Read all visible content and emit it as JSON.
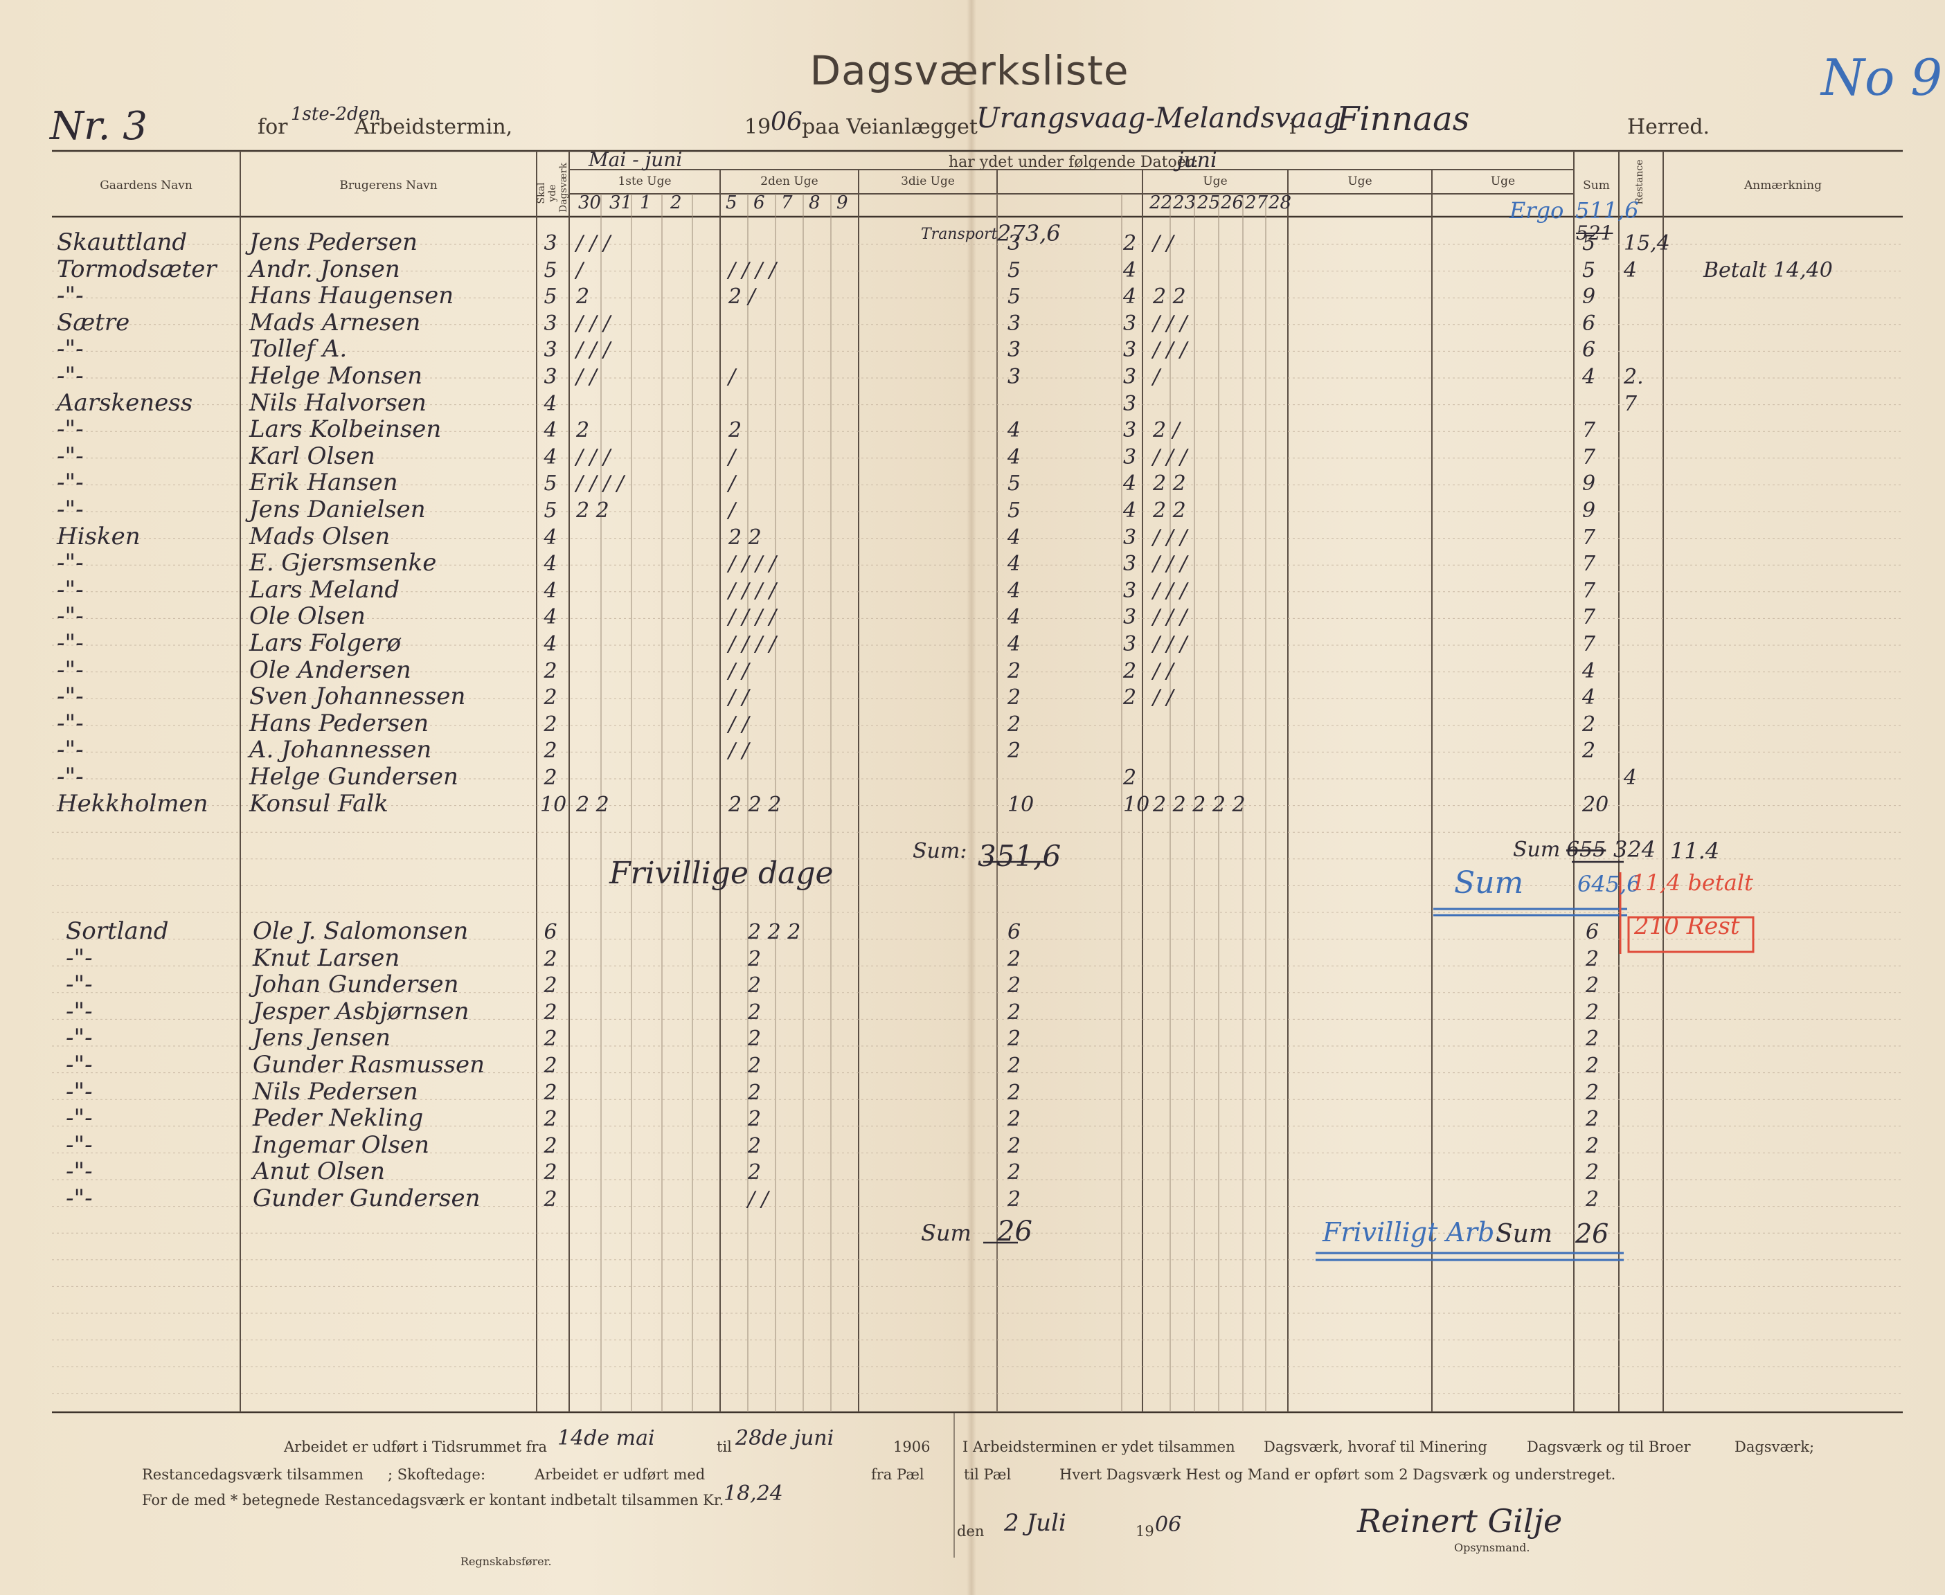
{
  "header": {
    "title": "Dagsværksliste",
    "list_no": "Nr. 3",
    "stamp_no": "No 9",
    "for_label": "for",
    "termin_hand": "1ste-2den",
    "arbeidstermin_label": "Arbeidstermin,",
    "year_prefix": "19",
    "year_hand": "06",
    "paa_label": "paa Veianlægget",
    "veianlaeg_hand": "Urangsvaag-Melandsvaag",
    "i_label": "i",
    "herred_hand": "Finnaas",
    "herred_label": "Herred."
  },
  "columns": {
    "gaard": "Gaardens Navn",
    "bruger": "Brugerens Navn",
    "skal": "Skal yde Dagsværk",
    "har_ydet": "har ydet under følgende Datoer:",
    "har_ydet_hand": "juni",
    "mai_juni_hand": "Mai - juni",
    "week1": "1ste Uge",
    "week2": "2den Uge",
    "week3": "3die Uge",
    "week4": "Uge",
    "week5": "Uge",
    "week6": "Uge",
    "sum": "Sum",
    "restance": "Restance",
    "anm": "Anmærkning",
    "dates_w1": [
      "30",
      "31",
      "1",
      "2"
    ],
    "dates_w2": [
      "5",
      "6",
      "7",
      "8",
      "9"
    ],
    "dates_w4": [
      "22",
      "23",
      "25",
      "26",
      "27",
      "28"
    ]
  },
  "rows": [
    {
      "gaard": "Skauttland",
      "bruger": "Jens Pedersen",
      "skal": "3",
      "w1": "/ / /",
      "w3a": "3",
      "w4a": "2",
      "w4": "/ /",
      "sum": "5",
      "rest": "15,4",
      "anm": ""
    },
    {
      "gaard": "Tormodsæter",
      "bruger": "Andr. Jonsen",
      "skal": "5",
      "w1": "/",
      "w2": "/ / / /",
      "w3a": "5",
      "w4a": "4",
      "w4": "",
      "sum": "5",
      "rest": "4",
      "anm": "Betalt 14,40"
    },
    {
      "gaard": "-\"-",
      "bruger": "Hans Haugensen",
      "skal": "5",
      "w1": "2",
      "w2": "2 /",
      "w3a": "5",
      "w4a": "4",
      "w4": "2 2",
      "sum": "9",
      "rest": "",
      "anm": ""
    },
    {
      "gaard": "Sætre",
      "bruger": "Mads Arnesen",
      "skal": "3",
      "w1": "/ / /",
      "w3a": "3",
      "w4a": "3",
      "w4": "/ / /",
      "sum": "6",
      "rest": "",
      "anm": ""
    },
    {
      "gaard": "-\"-",
      "bruger": "Tollef A.",
      "skal": "3",
      "w1": "/ / /",
      "w3a": "3",
      "w4a": "3",
      "w4": "/ / /",
      "sum": "6",
      "rest": "",
      "anm": ""
    },
    {
      "gaard": "-\"-",
      "bruger": "Helge Monsen",
      "skal": "3",
      "w1": "/ /",
      "w2": "/",
      "w3a": "3",
      "w4a": "3",
      "w4": "/",
      "sum": "4",
      "rest": "2.",
      "anm": ""
    },
    {
      "gaard": "Aarskeness",
      "bruger": "Nils Halvorsen",
      "skal": "4",
      "w1": "",
      "w3a": "",
      "w4a": "3",
      "w4": "",
      "sum": "",
      "rest": "7",
      "anm": ""
    },
    {
      "gaard": "-\"-",
      "bruger": "Lars Kolbeinsen",
      "skal": "4",
      "w1": "2",
      "w2": "2",
      "w3a": "4",
      "w4a": "3",
      "w4": "2 /",
      "sum": "7",
      "rest": "",
      "anm": ""
    },
    {
      "gaard": "-\"-",
      "bruger": "Karl Olsen",
      "skal": "4",
      "w1": "/ / /",
      "w2": "/",
      "w3a": "4",
      "w4a": "3",
      "w4": "/ / /",
      "sum": "7",
      "rest": "",
      "anm": ""
    },
    {
      "gaard": "-\"-",
      "bruger": "Erik Hansen",
      "skal": "5",
      "w1": "/ / / /",
      "w2": "/",
      "w3a": "5",
      "w4a": "4",
      "w4": "2 2",
      "sum": "9",
      "rest": "",
      "anm": ""
    },
    {
      "gaard": "-\"-",
      "bruger": "Jens Danielsen",
      "skal": "5",
      "w1": "2 2",
      "w2": "/",
      "w3a": "5",
      "w4a": "4",
      "w4": "2 2",
      "sum": "9",
      "rest": "",
      "anm": ""
    },
    {
      "gaard": "Hisken",
      "bruger": "Mads Olsen",
      "skal": "4",
      "w1": "",
      "w2": "2 2",
      "w3a": "4",
      "w4a": "3",
      "w4": "/ / /",
      "sum": "7",
      "rest": "",
      "anm": ""
    },
    {
      "gaard": "-\"-",
      "bruger": "E. Gjersmsenke",
      "skal": "4",
      "w1": "",
      "w2": "/ / / /",
      "w3a": "4",
      "w4a": "3",
      "w4": "/ / /",
      "sum": "7",
      "rest": "",
      "anm": ""
    },
    {
      "gaard": "-\"-",
      "bruger": "Lars Meland",
      "skal": "4",
      "w1": "",
      "w2": "/ / / /",
      "w3a": "4",
      "w4a": "3",
      "w4": "/ / /",
      "sum": "7",
      "rest": "",
      "anm": ""
    },
    {
      "gaard": "-\"-",
      "bruger": "Ole Olsen",
      "skal": "4",
      "w1": "",
      "w2": "/ / / /",
      "w3a": "4",
      "w4a": "3",
      "w4": "/ / /",
      "sum": "7",
      "rest": "",
      "anm": ""
    },
    {
      "gaard": "-\"-",
      "bruger": "Lars Folgerø",
      "skal": "4",
      "w1": "",
      "w2": "/ / / /",
      "w3a": "4",
      "w4a": "3",
      "w4": "/ / /",
      "sum": "7",
      "rest": "",
      "anm": ""
    },
    {
      "gaard": "-\"-",
      "bruger": "Ole Andersen",
      "skal": "2",
      "w1": "",
      "w2": "/ /",
      "w3a": "2",
      "w4a": "2",
      "w4": "/ /",
      "sum": "4",
      "rest": "",
      "anm": ""
    },
    {
      "gaard": "-\"-",
      "bruger": "Sven Johannessen",
      "skal": "2",
      "w1": "",
      "w2": "/ /",
      "w3a": "2",
      "w4a": "2",
      "w4": "/ /",
      "sum": "4",
      "rest": "",
      "anm": ""
    },
    {
      "gaard": "-\"-",
      "bruger": "Hans Pedersen",
      "skal": "2",
      "w1": "",
      "w2": "/ /",
      "w3a": "2",
      "w4a": "",
      "w4": "",
      "sum": "2",
      "rest": "",
      "anm": ""
    },
    {
      "gaard": "-\"-",
      "bruger": "A. Johannessen",
      "skal": "2",
      "w1": "",
      "w2": "/ /",
      "w3a": "2",
      "w4a": "",
      "w4": "",
      "sum": "2",
      "rest": "",
      "anm": ""
    },
    {
      "gaard": "-\"-",
      "bruger": "Helge Gundersen",
      "skal": "2",
      "w1": "",
      "w2": "",
      "w3a": "",
      "w4a": "2",
      "w4": "",
      "sum": "",
      "rest": "4",
      "anm": ""
    },
    {
      "gaard": "Hekkholmen",
      "bruger": "Konsul Falk",
      "skal": "10",
      "w1": "2 2",
      "w2": "2 2 2",
      "w3a": "10",
      "w4a": "10",
      "w4": "2 2 2 2 2",
      "sum": "20",
      "rest": "",
      "anm": ""
    }
  ],
  "subtotals": {
    "transport_label": "Transport",
    "transport_val": "273,6",
    "sum1_label": "Sum:",
    "sum1_val": "351,6",
    "frivillig_label": "Frivillige dage",
    "ergo_label": "Ergo",
    "ergo_val": "511,6",
    "struck_sum": "521",
    "sum_right_label": "Sum",
    "sum_right_struck": "655",
    "sum_right_val": "324",
    "rest_total": "11.4",
    "sum2_label": "Sum",
    "sum2_val": "645,6",
    "red1": "11,4 betalt",
    "red2": "210 Rest"
  },
  "rows2": [
    {
      "gaard": "Sortland",
      "bruger": "Ole J. Salomonsen",
      "skal": "6",
      "w2": "2 2 2",
      "w3a": "6",
      "sum": "6"
    },
    {
      "gaard": "-\"-",
      "bruger": "Knut Larsen",
      "skal": "2",
      "w2": "2",
      "w3a": "2",
      "sum": "2"
    },
    {
      "gaard": "-\"-",
      "bruger": "Johan Gundersen",
      "skal": "2",
      "w2": "2",
      "w3a": "2",
      "sum": "2"
    },
    {
      "gaard": "-\"-",
      "bruger": "Jesper Asbjørnsen",
      "skal": "2",
      "w2": "2",
      "w3a": "2",
      "sum": "2"
    },
    {
      "gaard": "-\"-",
      "bruger": "Jens Jensen",
      "skal": "2",
      "w2": "2",
      "w3a": "2",
      "sum": "2"
    },
    {
      "gaard": "-\"-",
      "bruger": "Gunder Rasmussen",
      "skal": "2",
      "w2": "2",
      "w3a": "2",
      "sum": "2"
    },
    {
      "gaard": "-\"-",
      "bruger": "Nils Pedersen",
      "skal": "2",
      "w2": "2",
      "w3a": "2",
      "sum": "2"
    },
    {
      "gaard": "-\"-",
      "bruger": "Peder Nekling",
      "skal": "2",
      "w2": "2",
      "w3a": "2",
      "sum": "2"
    },
    {
      "gaard": "-\"-",
      "bruger": "Ingemar Olsen",
      "skal": "2",
      "w2": "2",
      "w3a": "2",
      "sum": "2"
    },
    {
      "gaard": "-\"-",
      "bruger": "Anut Olsen",
      "skal": "2",
      "w2": "2",
      "w3a": "2",
      "sum": "2"
    },
    {
      "gaard": "-\"-",
      "bruger": "Gunder Gundersen",
      "skal": "2",
      "w2": "/ /",
      "w3a": "2",
      "sum": "2"
    }
  ],
  "bottom_sums": {
    "sum3_label": "Sum",
    "sum3_val": "26",
    "frivillig_arb": "Frivilligt Arb.",
    "sum4_label": "Sum",
    "sum4_val": "26"
  },
  "footer": {
    "line1_a": "Arbeidet er udført i Tidsrummet fra",
    "line1_from": "14de mai",
    "line1_til": "til",
    "line1_to": "28de juni",
    "line1_year": "1906",
    "line1_b": "I Arbeidsterminen er ydet tilsammen",
    "line1_c": "Dagsværk, hvoraf til Minering",
    "line1_d": "Dagsværk og til Broer",
    "line1_e": "Dagsværk;",
    "line2_a": "Restancedagsværk tilsammen",
    "line2_b": "; Skoftedage:",
    "line2_c": "Arbeidet er udført med",
    "line2_d": "fra Pæl",
    "line2_e": "til Pæl",
    "line2_f": "Hvert Dagsværk Hest og Mand er opført som 2 Dagsværk og understreget.",
    "line3_a": "For de med * betegnede Restancedagsværk er kontant indbetalt tilsammen Kr.",
    "line3_kr": "18,24",
    "den_label": "den",
    "date_hand": "2 Juli",
    "date_year_prefix": "19",
    "date_year_hand": "06",
    "signature": "Reinert Gilje",
    "regnskab": "Regnskabsfører.",
    "opsyns": "Opsynsmand."
  }
}
